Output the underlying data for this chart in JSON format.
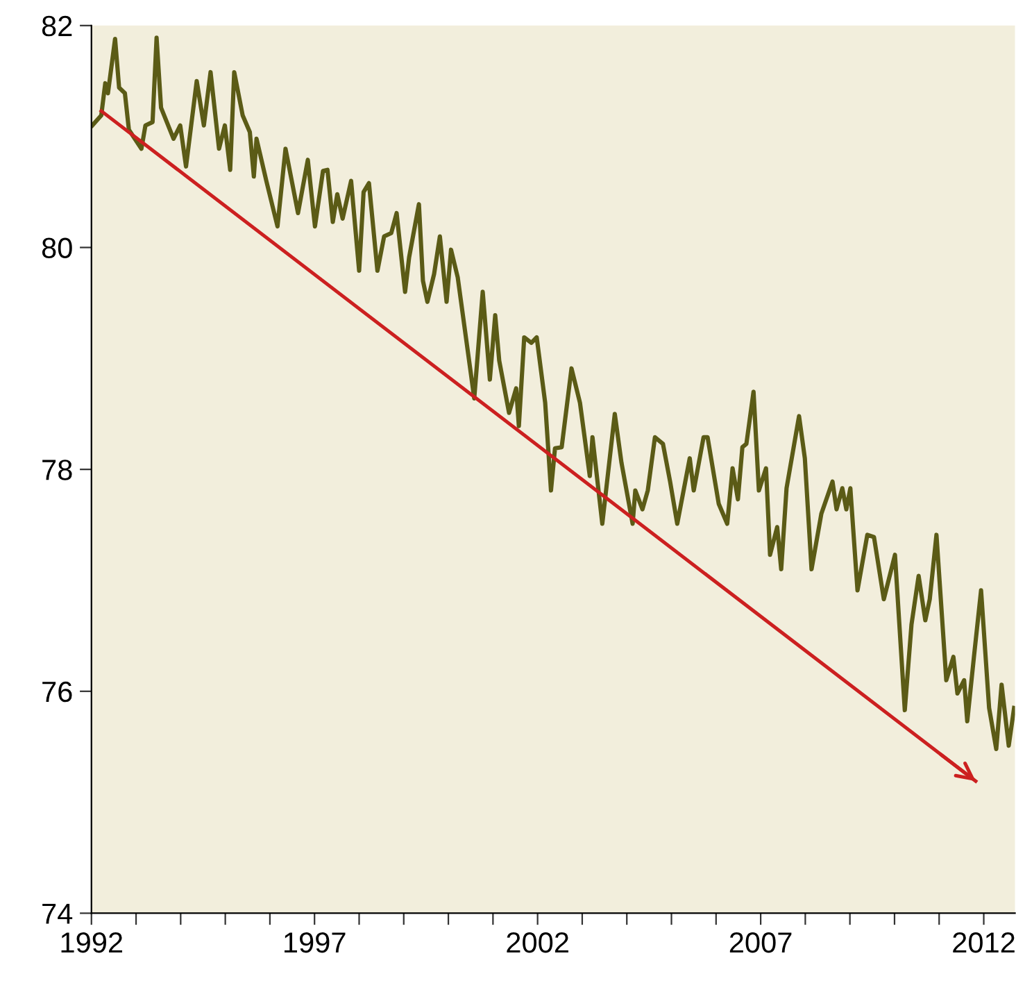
{
  "chart_data": {
    "type": "line",
    "xlim": [
      1992,
      2012.7
    ],
    "xticks": [
      1992,
      {
        "value": 1993,
        "label": null
      },
      {
        "value": 1994,
        "label": null
      },
      {
        "value": 1995,
        "label": null
      },
      {
        "value": 1996,
        "label": null
      },
      1997,
      {
        "value": 1998,
        "label": null
      },
      {
        "value": 1999,
        "label": null
      },
      {
        "value": 2000,
        "label": null
      },
      {
        "value": 2001,
        "label": null
      },
      2002,
      {
        "value": 2003,
        "label": null
      },
      {
        "value": 2004,
        "label": null
      },
      {
        "value": 2005,
        "label": null
      },
      {
        "value": 2006,
        "label": null
      },
      2007,
      {
        "value": 2008,
        "label": null
      },
      {
        "value": 2009,
        "label": null
      },
      {
        "value": 2010,
        "label": null
      },
      {
        "value": 2011,
        "label": null
      },
      2012
    ],
    "ylim": [
      74,
      82
    ],
    "yticks": [
      74,
      76,
      78,
      80,
      82
    ],
    "grid": false,
    "legend": false,
    "marker": "none",
    "line_style": "solid",
    "series": [
      {
        "color": "#5b5b16",
        "x": [
          1992.02,
          1992.22,
          1992.31,
          1992.37,
          1992.53,
          1992.62,
          1992.75,
          1992.84,
          1993.12,
          1993.21,
          1993.37,
          1993.46,
          1993.56,
          1993.84,
          1993.99,
          1994.12,
          1994.36,
          1994.52,
          1994.67,
          1994.86,
          1994.99,
          1995.11,
          1995.2,
          1995.39,
          1995.55,
          1995.64,
          1995.7,
          1995.92,
          1996.17,
          1996.35,
          1996.63,
          1996.85,
          1997.01,
          1997.19,
          1997.29,
          1997.41,
          1997.51,
          1997.63,
          1997.82,
          1998.0,
          1998.1,
          1998.22,
          1998.41,
          1998.56,
          1998.72,
          1998.84,
          1999.03,
          1999.12,
          1999.34,
          1999.43,
          1999.53,
          1999.68,
          1999.81,
          1999.96,
          2000.06,
          2000.21,
          2000.58,
          2000.77,
          2000.93,
          2001.05,
          2001.14,
          2001.36,
          2001.52,
          2001.58,
          2001.7,
          2001.86,
          2001.98,
          2002.17,
          2002.3,
          2002.39,
          2002.54,
          2002.76,
          2002.95,
          2003.17,
          2003.23,
          2003.45,
          2003.73,
          2003.88,
          2004.13,
          2004.19,
          2004.35,
          2004.47,
          2004.63,
          2004.81,
          2004.97,
          2005.13,
          2005.41,
          2005.5,
          2005.72,
          2005.81,
          2006.06,
          2006.25,
          2006.37,
          2006.49,
          2006.59,
          2006.68,
          2006.84,
          2006.96,
          2007.12,
          2007.21,
          2007.37,
          2007.46,
          2007.58,
          2007.86,
          2007.99,
          2008.14,
          2008.36,
          2008.61,
          2008.7,
          2008.83,
          2008.92,
          2009.01,
          2009.17,
          2009.39,
          2009.54,
          2009.76,
          2010.01,
          2010.23,
          2010.38,
          2010.54,
          2010.69,
          2010.79,
          2010.94,
          2011.16,
          2011.32,
          2011.41,
          2011.56,
          2011.63,
          2011.78,
          2011.94,
          2012.12,
          2012.28,
          2012.4,
          2012.56,
          2012.68
        ],
        "values": [
          81.1,
          81.19,
          81.48,
          81.39,
          81.88,
          81.44,
          81.39,
          81.06,
          80.89,
          81.1,
          81.13,
          81.89,
          81.26,
          80.98,
          81.1,
          80.73,
          81.5,
          81.1,
          81.58,
          80.89,
          81.1,
          80.7,
          81.58,
          81.19,
          81.04,
          80.64,
          80.98,
          80.6,
          80.19,
          80.89,
          80.31,
          80.79,
          80.19,
          80.69,
          80.7,
          80.23,
          80.48,
          80.26,
          80.6,
          79.79,
          80.5,
          80.58,
          79.79,
          80.1,
          80.13,
          80.31,
          79.6,
          79.91,
          80.39,
          79.7,
          79.51,
          79.76,
          80.1,
          79.51,
          79.98,
          79.73,
          78.64,
          79.6,
          78.81,
          79.39,
          78.98,
          78.51,
          78.73,
          78.39,
          79.19,
          79.14,
          79.19,
          78.6,
          77.81,
          78.19,
          78.2,
          78.91,
          78.6,
          77.94,
          78.29,
          77.51,
          78.5,
          78.06,
          77.51,
          77.81,
          77.64,
          77.81,
          78.29,
          78.23,
          77.89,
          77.51,
          78.1,
          77.81,
          78.29,
          78.29,
          77.69,
          77.51,
          78.01,
          77.73,
          78.2,
          78.23,
          78.7,
          77.81,
          78.01,
          77.23,
          77.48,
          77.1,
          77.83,
          78.48,
          78.1,
          77.1,
          77.6,
          77.89,
          77.64,
          77.83,
          77.64,
          77.83,
          76.91,
          77.41,
          77.39,
          76.83,
          77.23,
          75.83,
          76.6,
          77.04,
          76.64,
          76.83,
          77.41,
          76.1,
          76.31,
          75.98,
          76.1,
          75.73,
          76.31,
          76.91,
          75.85,
          75.48,
          76.06,
          75.51,
          75.85
        ]
      },
      {
        "color": "#cc2020",
        "x": [
          1992.22,
          2011.82
        ],
        "values": [
          81.23,
          75.19
        ]
      }
    ]
  }
}
